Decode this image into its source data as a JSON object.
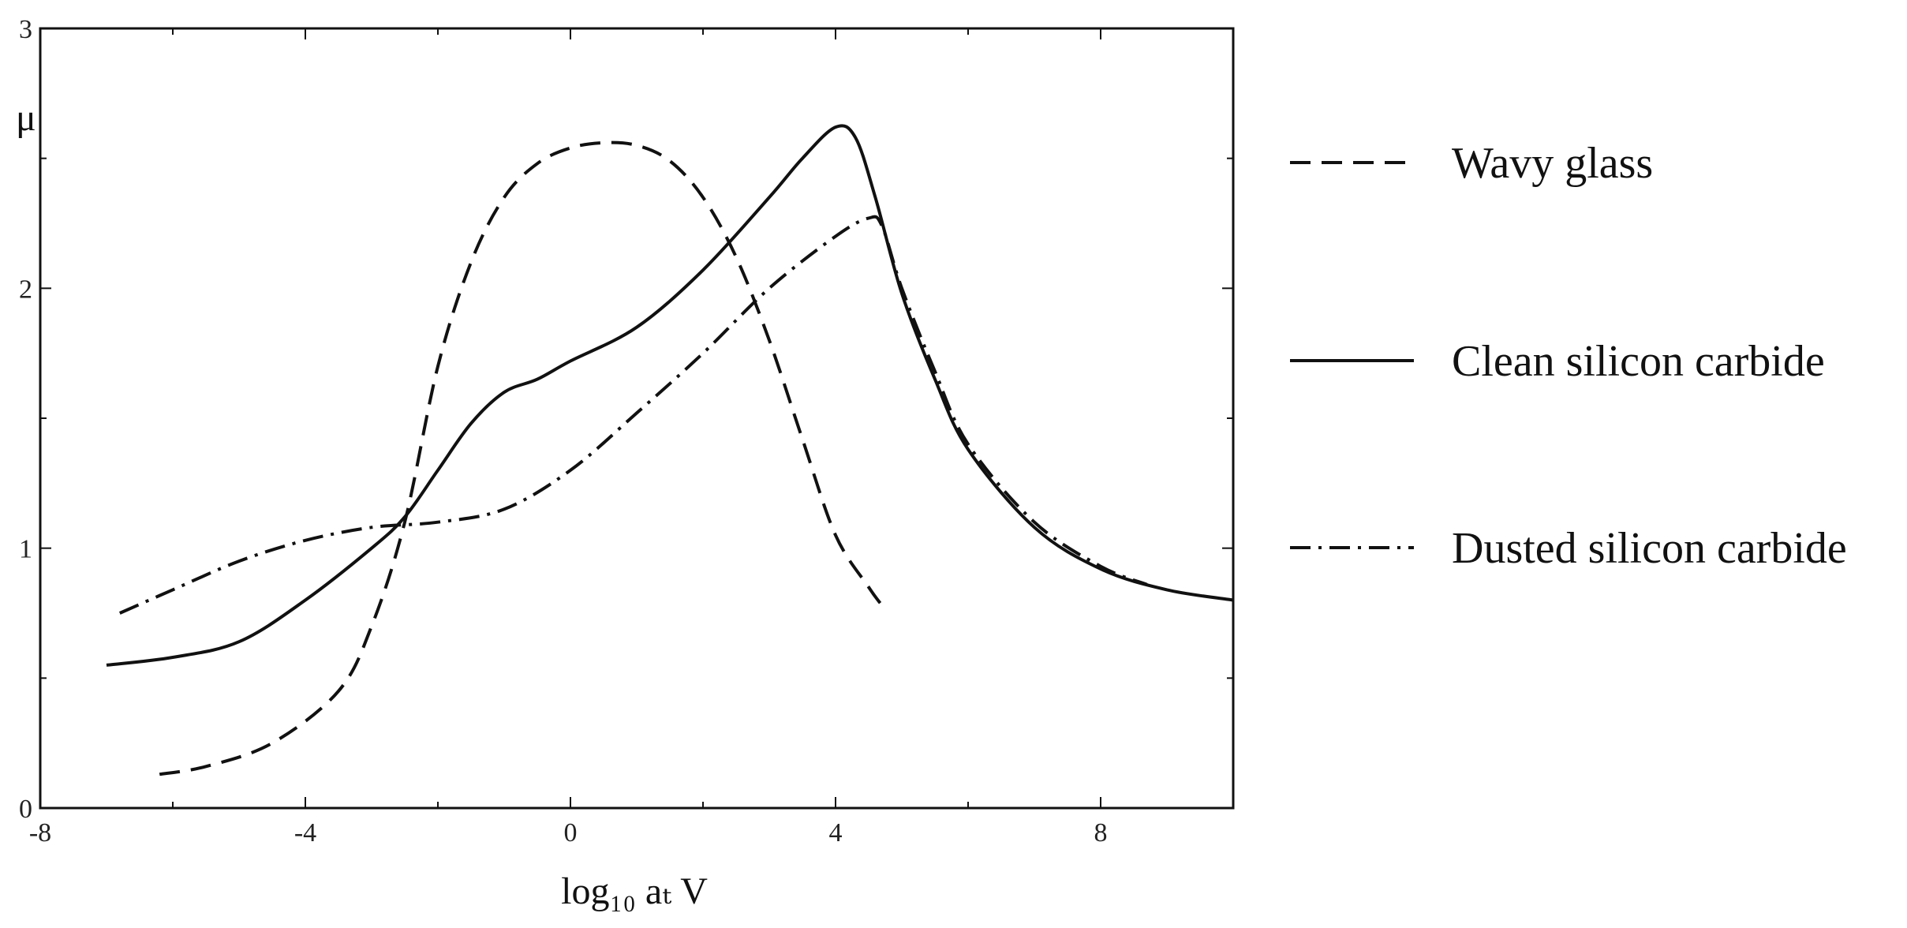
{
  "chart_data": {
    "type": "line",
    "title": "",
    "xlabel": "log₁₀ aₜ V",
    "ylabel": "μ",
    "xlim": [
      -8,
      10
    ],
    "ylim": [
      0,
      3
    ],
    "x_ticks": [
      -8,
      -4,
      0,
      4,
      8
    ],
    "y_ticks": [
      0,
      1,
      2,
      3
    ],
    "x_tick_labels": [
      "-8",
      "-4",
      "0",
      "4",
      "8"
    ],
    "y_tick_labels": [
      "0",
      "1",
      "2",
      "3"
    ],
    "grid": false,
    "legend_position": "right",
    "series": [
      {
        "name": "Wavy glass",
        "style": "dashed",
        "x": [
          -6.2,
          -5.5,
          -4.5,
          -3.5,
          -3.0,
          -2.5,
          -2.0,
          -1.5,
          -1.0,
          -0.5,
          0.0,
          0.5,
          1.0,
          1.5,
          2.0,
          2.5,
          3.0,
          3.5,
          4.0,
          4.5,
          4.7
        ],
        "y": [
          0.13,
          0.16,
          0.25,
          0.45,
          0.7,
          1.1,
          1.7,
          2.1,
          2.35,
          2.48,
          2.54,
          2.56,
          2.55,
          2.49,
          2.35,
          2.12,
          1.8,
          1.42,
          1.05,
          0.85,
          0.78
        ]
      },
      {
        "name": "Clean silicon carbide",
        "style": "solid",
        "x": [
          -7.0,
          -6.0,
          -5.0,
          -4.0,
          -3.0,
          -2.5,
          -2.0,
          -1.5,
          -1.0,
          -0.5,
          0.0,
          1.0,
          2.0,
          3.0,
          3.5,
          4.0,
          4.3,
          4.6,
          5.0,
          5.5,
          6.0,
          7.0,
          8.0,
          9.0,
          10.0
        ],
        "y": [
          0.55,
          0.58,
          0.64,
          0.8,
          1.0,
          1.12,
          1.3,
          1.48,
          1.6,
          1.65,
          1.72,
          1.85,
          2.07,
          2.35,
          2.5,
          2.62,
          2.58,
          2.35,
          1.98,
          1.65,
          1.38,
          1.08,
          0.92,
          0.84,
          0.8
        ]
      },
      {
        "name": "Dusted silicon carbide",
        "style": "dashdot",
        "x": [
          -6.8,
          -6.0,
          -5.0,
          -4.0,
          -3.0,
          -2.0,
          -1.0,
          0.0,
          1.0,
          2.0,
          3.0,
          4.0,
          4.5,
          4.7,
          5.0,
          5.5,
          6.0,
          7.0,
          8.0,
          8.7
        ],
        "y": [
          0.75,
          0.84,
          0.95,
          1.03,
          1.08,
          1.1,
          1.15,
          1.3,
          1.52,
          1.75,
          2.0,
          2.2,
          2.27,
          2.24,
          2.0,
          1.68,
          1.4,
          1.1,
          0.93,
          0.86
        ]
      }
    ]
  }
}
